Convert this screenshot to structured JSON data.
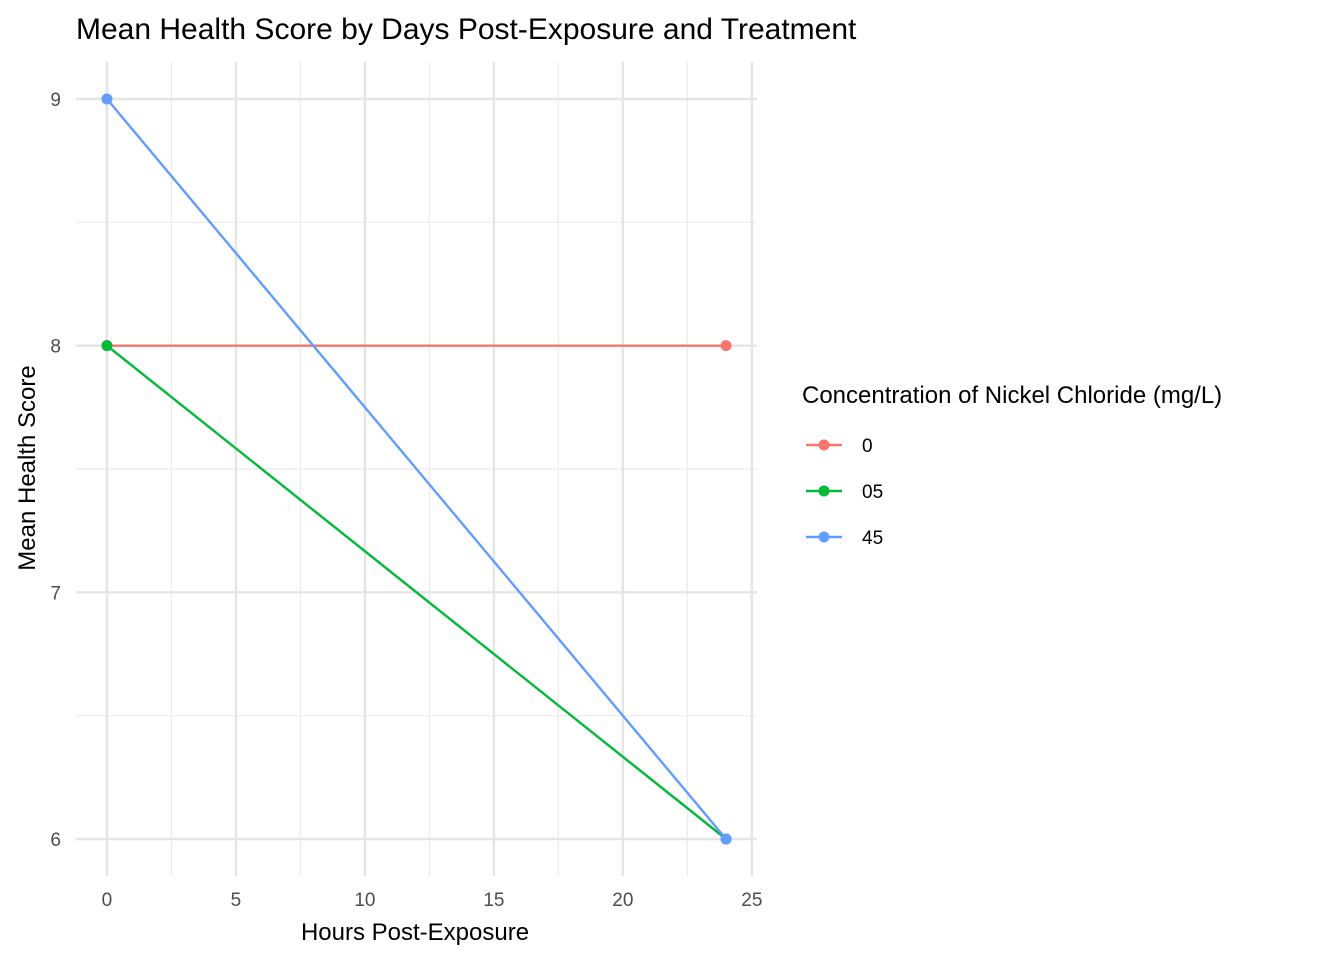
{
  "chart_data": {
    "type": "line",
    "title": "Mean Health Score by Days Post-Exposure and Treatment",
    "xlabel": "Hours Post-Exposure",
    "ylabel": "Mean Health Score",
    "xlim": [
      -1.2,
      25.2
    ],
    "ylim": [
      5.85,
      9.15
    ],
    "x_ticks": [
      0,
      5,
      10,
      15,
      20,
      25
    ],
    "y_ticks": [
      6,
      7,
      8,
      9
    ],
    "grid": true,
    "legend": {
      "title": "Concentration of Nickel Chloride (mg/L)",
      "position": "right"
    },
    "series": [
      {
        "name": "0",
        "color": "#F8766D",
        "x": [
          0,
          24
        ],
        "y": [
          8,
          8
        ]
      },
      {
        "name": "05",
        "color": "#00BA38",
        "x": [
          0,
          24
        ],
        "y": [
          8,
          6
        ]
      },
      {
        "name": "45",
        "color": "#619CFF",
        "x": [
          0,
          24
        ],
        "y": [
          9,
          6
        ]
      }
    ]
  }
}
